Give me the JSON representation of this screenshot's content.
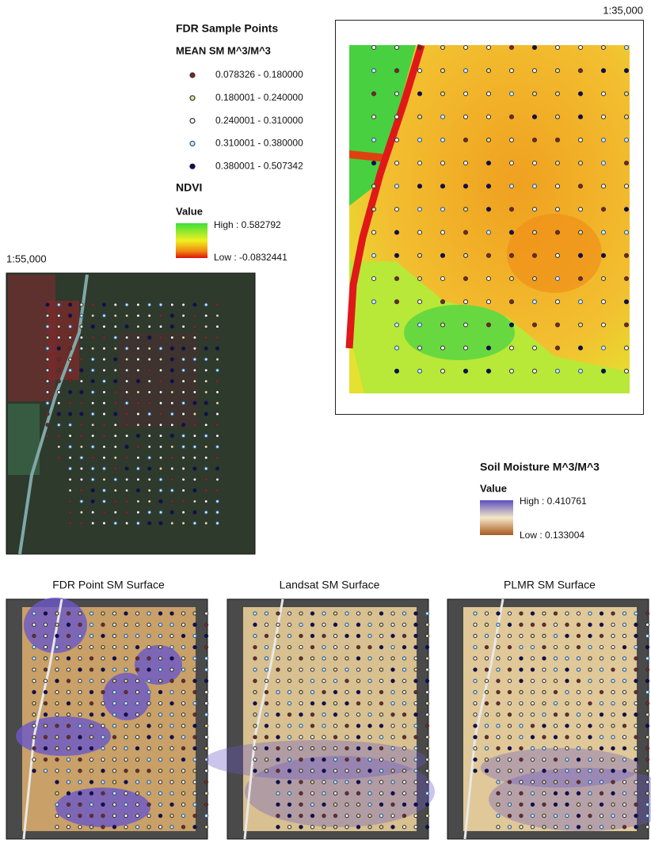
{
  "scales": {
    "large": "1:35,000",
    "small": "1:55,000"
  },
  "sample_legend": {
    "title": "FDR Sample Points",
    "subtitle": "MEAN SM M^3/M^3",
    "classes": [
      "0.078326 - 0.180000",
      "0.180001 - 0.240000",
      "0.240001 - 0.310000",
      "0.310001 - 0.380000",
      "0.380001 - 0.507342"
    ]
  },
  "ndvi_legend": {
    "title": "NDVI",
    "value_label": "Value",
    "high": "High : 0.582792",
    "low": "Low : -0.0832441"
  },
  "sm_legend": {
    "title": "Soil Moisture M^3/M^3",
    "value_label": "Value",
    "high": "High : 0.410761",
    "low": "Low : 0.133004"
  },
  "panels": [
    "FDR Point SM Surface",
    "Landsat SM Surface",
    "PLMR SM Surface"
  ]
}
